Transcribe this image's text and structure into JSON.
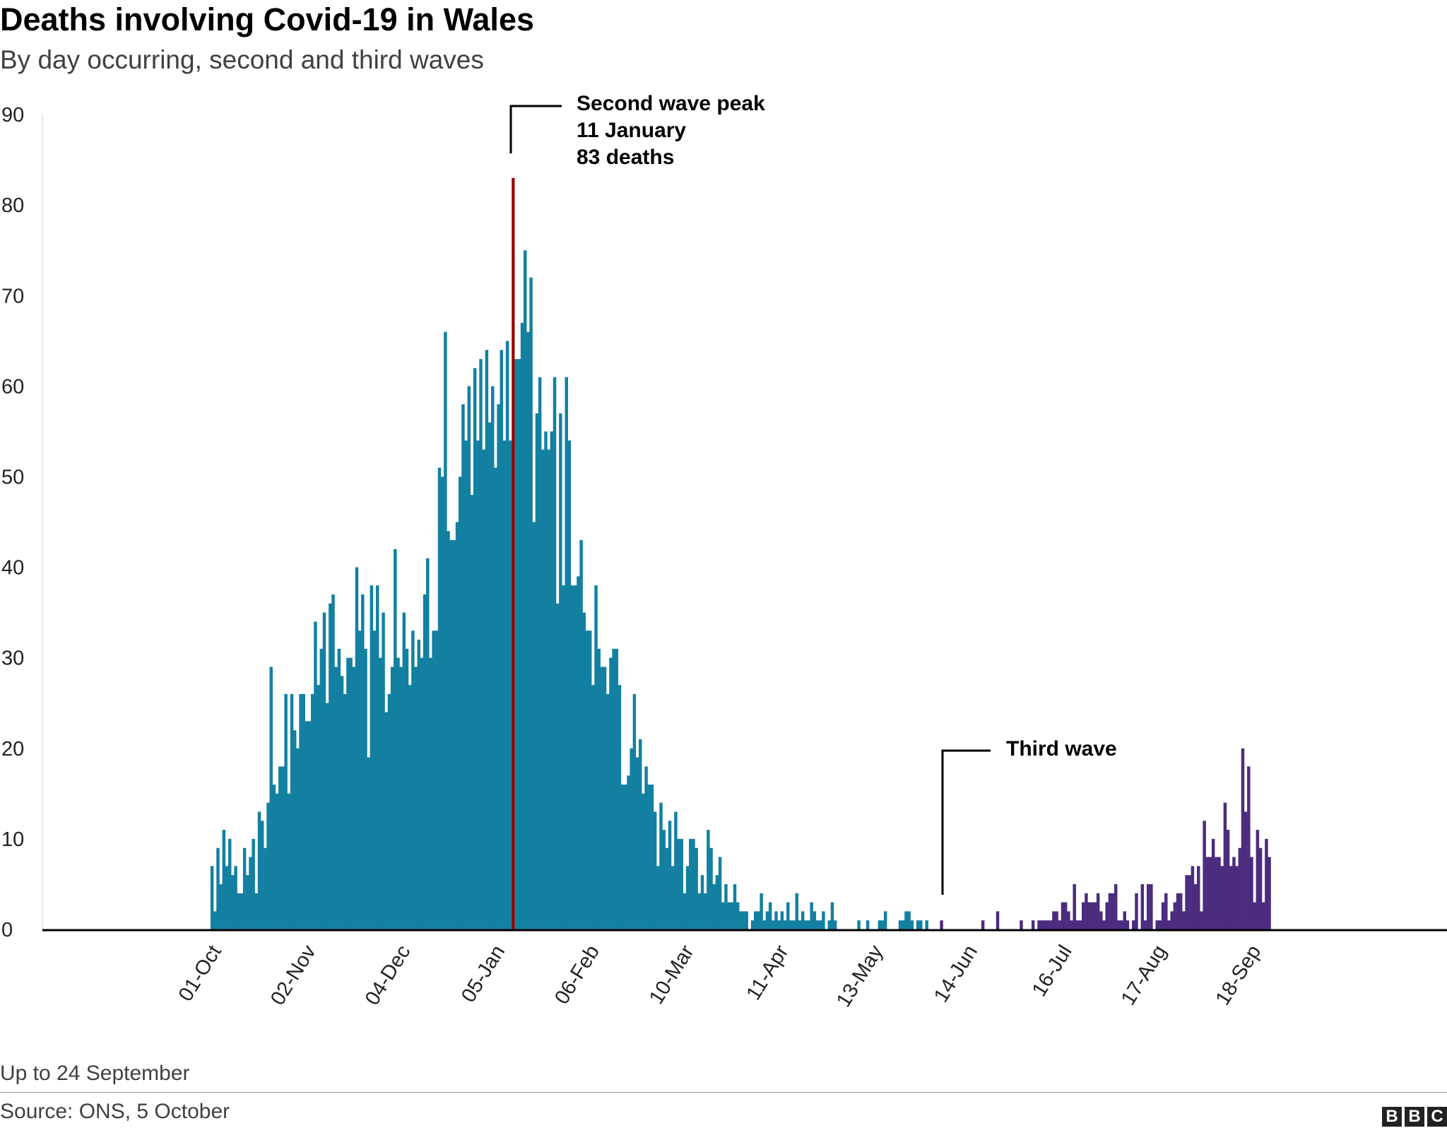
{
  "header": {
    "title": "Deaths involving Covid-19 in Wales",
    "subtitle": "By day occurring, second and third waves"
  },
  "chart_data": {
    "type": "bar",
    "title": "Deaths involving Covid-19 in Wales",
    "subtitle": "By day occurring, second and third waves",
    "xlabel": "",
    "ylabel": "",
    "ylim": [
      0,
      90
    ],
    "yticks": [
      "0",
      "10",
      "20",
      "30",
      "40",
      "50",
      "60",
      "70",
      "80",
      "90"
    ],
    "xtick_labels": [
      "01-Oct",
      "02-Nov",
      "04-Dec",
      "05-Jan",
      "06-Feb",
      "10-Mar",
      "11-Apr",
      "13-May",
      "14-Jun",
      "16-Jul",
      "17-Aug",
      "18-Sep"
    ],
    "grid": false,
    "legend": "none",
    "colors": {
      "second_wave": "#1380A1",
      "third_wave": "#4B2C7F",
      "peak": "#990000",
      "axis": "#000000"
    },
    "daily_values_by_month": [
      {
        "month": "Oct",
        "wave": "second",
        "values": [
          7,
          2,
          9,
          5,
          11,
          7,
          10,
          6,
          7,
          4,
          4,
          9,
          6,
          8,
          10,
          4,
          13,
          12,
          9,
          14,
          29,
          16,
          15,
          18,
          18,
          26,
          15,
          26,
          22,
          20,
          26
        ]
      },
      {
        "month": "Nov",
        "wave": "second",
        "values": [
          26,
          23,
          23,
          26,
          34,
          27,
          31,
          35,
          25,
          36,
          37,
          29,
          31,
          28,
          26,
          30,
          30,
          29,
          40,
          33,
          37,
          31,
          19,
          38,
          33,
          38,
          30,
          35,
          24,
          26
        ]
      },
      {
        "month": "Dec",
        "wave": "second",
        "values": [
          29,
          42,
          30,
          29,
          35,
          31,
          27,
          33,
          29,
          32,
          30,
          37,
          41,
          30,
          33,
          33,
          51,
          50,
          66,
          44,
          43,
          43,
          45,
          50,
          58,
          54,
          60,
          48,
          62,
          54,
          63
        ]
      },
      {
        "month": "Jan",
        "wave": "second",
        "values": [
          53,
          64,
          56,
          60,
          51,
          58,
          64,
          54,
          65,
          54,
          83,
          63,
          63,
          67,
          75,
          66,
          72,
          45,
          57,
          61,
          53,
          55,
          53,
          55,
          61,
          36,
          57,
          38,
          61,
          54,
          38
        ]
      },
      {
        "month": "Feb",
        "wave": "second",
        "values": [
          38,
          39,
          43,
          35,
          33,
          33,
          27,
          38,
          31,
          29,
          29,
          26,
          30,
          31,
          31,
          27,
          16,
          16,
          17,
          20,
          26,
          19,
          21,
          15,
          18,
          16,
          16,
          13
        ]
      },
      {
        "month": "Mar",
        "wave": "second",
        "values": [
          7,
          14,
          11,
          9,
          12,
          7,
          13,
          10,
          10,
          4,
          7,
          10,
          10,
          9,
          4,
          6,
          4,
          11,
          9,
          5,
          6,
          8,
          3,
          5,
          3,
          3,
          5,
          3,
          2,
          2,
          2
        ]
      },
      {
        "month": "Apr",
        "wave": "second",
        "values": [
          0,
          1,
          2,
          2,
          4,
          1,
          2,
          3,
          1,
          2,
          1,
          2,
          1,
          3,
          1,
          1,
          4,
          1,
          2,
          1,
          1,
          3,
          2,
          1,
          1,
          2,
          0,
          1,
          3,
          1
        ]
      },
      {
        "month": "May",
        "wave": "second",
        "values": [
          0,
          0,
          0,
          0,
          0,
          0,
          0,
          1,
          0,
          0,
          1,
          0,
          0,
          0,
          1,
          1,
          2,
          0,
          0,
          0,
          0,
          1,
          1,
          2,
          2,
          1,
          0,
          1,
          1,
          0,
          1
        ]
      },
      {
        "month": "Jun",
        "wave": "third",
        "values": [
          0,
          0,
          0,
          0,
          1,
          0,
          0,
          0,
          0,
          0,
          0,
          0,
          0,
          0,
          0,
          0,
          0,
          0,
          1,
          0,
          0,
          0,
          0,
          2,
          0,
          0,
          0,
          0,
          0,
          0
        ]
      },
      {
        "month": "Jul",
        "wave": "third",
        "values": [
          0,
          1,
          0,
          0,
          0,
          1,
          0,
          1,
          1,
          1,
          1,
          1,
          2,
          2,
          1,
          3,
          3,
          2,
          1,
          5,
          1,
          1,
          3,
          4,
          3,
          3,
          3,
          4,
          2,
          1,
          3
        ]
      },
      {
        "month": "Aug",
        "wave": "third",
        "values": [
          4,
          4,
          5,
          1,
          1,
          2,
          1,
          0,
          1,
          4,
          0,
          5,
          1,
          5,
          5,
          0,
          1,
          1,
          3,
          4,
          1,
          2,
          3,
          4,
          4,
          2,
          6,
          6,
          7,
          5,
          7
        ]
      },
      {
        "month": "Sep",
        "wave": "third",
        "values": [
          2,
          12,
          8,
          8,
          10,
          8,
          8,
          7,
          14,
          11,
          7,
          8,
          7,
          9,
          20,
          13,
          18,
          8,
          3,
          11,
          9,
          3,
          10,
          8
        ]
      }
    ],
    "annotations": [
      {
        "lines": [
          "Second wave peak",
          "11 January",
          "83 deaths"
        ],
        "date": "11-Jan",
        "value": 83
      },
      {
        "lines": [
          "Third wave"
        ],
        "date": "05-Jun"
      }
    ]
  },
  "footer": {
    "note": "Up to 24 September",
    "source": "Source: ONS, 5 October",
    "logo": "BBC"
  }
}
